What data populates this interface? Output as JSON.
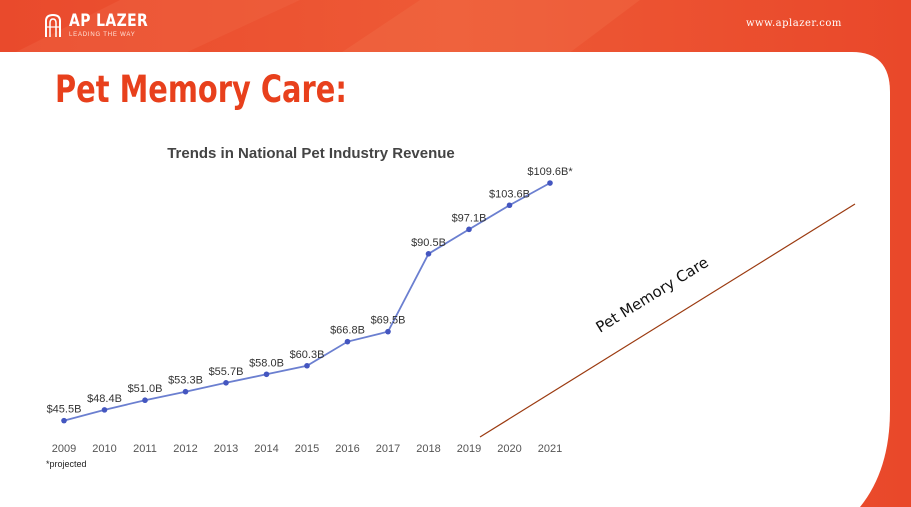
{
  "header": {
    "logo_name": "AP LAZER",
    "logo_tagline": "LEADING THE WAY",
    "site_url": "www.aplazer.com"
  },
  "page_title": "Pet Memory Care:",
  "colors": {
    "brand_orange": "#e8401c",
    "series_line": "#6b7fd0",
    "series_point": "#4456c0",
    "diagonal_line": "#9b3a10"
  },
  "chart_data": {
    "type": "line",
    "title": "Trends in National Pet Industry Revenue",
    "xlabel": "",
    "ylabel": "",
    "categories": [
      "2009",
      "2010",
      "2011",
      "2012",
      "2013",
      "2014",
      "2015",
      "2016",
      "2017",
      "2018",
      "2019",
      "2020",
      "2021"
    ],
    "points": [
      {
        "year": "2009",
        "value": 45.5,
        "label": "$45.5B"
      },
      {
        "year": "2010",
        "value": 48.4,
        "label": "$48.4B"
      },
      {
        "year": "2011",
        "value": 51.0,
        "label": "$51.0B"
      },
      {
        "year": "2012",
        "value": 53.3,
        "label": "$53.3B"
      },
      {
        "year": "2013",
        "value": 55.7,
        "label": "$55.7B"
      },
      {
        "year": "2014",
        "value": 58.0,
        "label": "$58.0B"
      },
      {
        "year": "2015",
        "value": 60.3,
        "label": "$60.3B"
      },
      {
        "year": "2016",
        "value": 66.8,
        "label": "$66.8B"
      },
      {
        "year": "2017",
        "value": 69.5,
        "label": "$69.5B"
      },
      {
        "year": "2018",
        "value": 90.5,
        "label": "$90.5B"
      },
      {
        "year": "2019",
        "value": 97.1,
        "label": "$97.1B"
      },
      {
        "year": "2020",
        "value": 103.6,
        "label": "$103.6B"
      },
      {
        "year": "2021",
        "value": 109.6,
        "label": "$109.6B*"
      }
    ],
    "ylim": [
      40,
      115
    ],
    "grid": false,
    "legend": "none",
    "footnote": "*projected"
  },
  "annotation": {
    "text": "Pet Memory Care"
  }
}
